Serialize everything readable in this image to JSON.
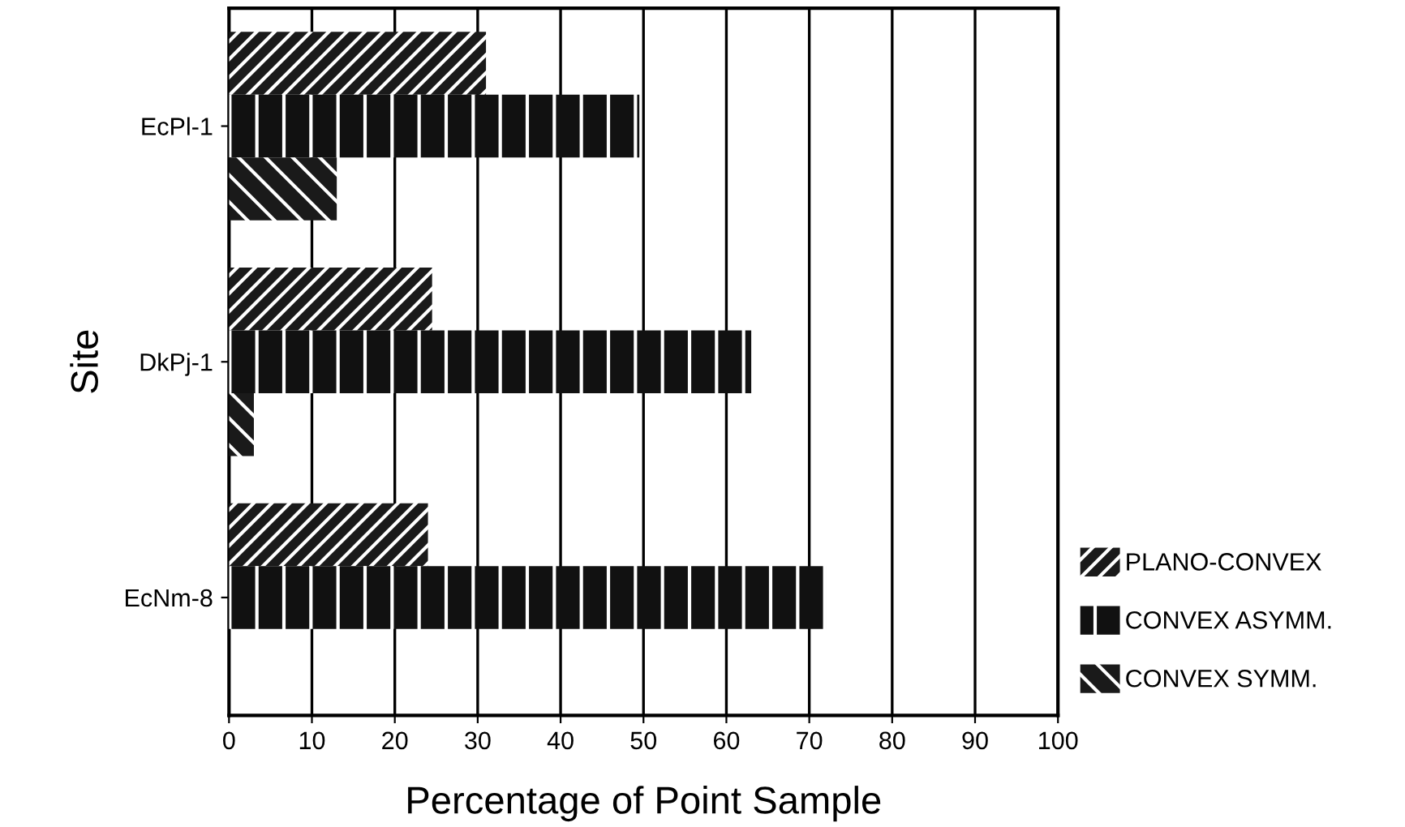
{
  "chart_data": {
    "type": "bar",
    "orientation": "horizontal",
    "xlabel": "Percentage of Point Sample",
    "ylabel": "Site",
    "categories": [
      "EcPl-1",
      "DkPj-1",
      "EcNm-8"
    ],
    "series": [
      {
        "name": "PLANO-CONVEX",
        "color": "#1a1a1a",
        "values": [
          31,
          24.5,
          24
        ]
      },
      {
        "name": "CONVEX ASYMM.",
        "color": "#111111",
        "values": [
          49.5,
          63,
          72
        ]
      },
      {
        "name": "CONVEX SYMM.",
        "color": "#1a1a1a",
        "values": [
          13,
          3,
          0
        ]
      }
    ],
    "xlim": [
      0,
      100
    ],
    "xticks": [
      0,
      10,
      20,
      30,
      40,
      50,
      60,
      70,
      80,
      90,
      100
    ],
    "grid": "x",
    "legend": "bottom right"
  }
}
